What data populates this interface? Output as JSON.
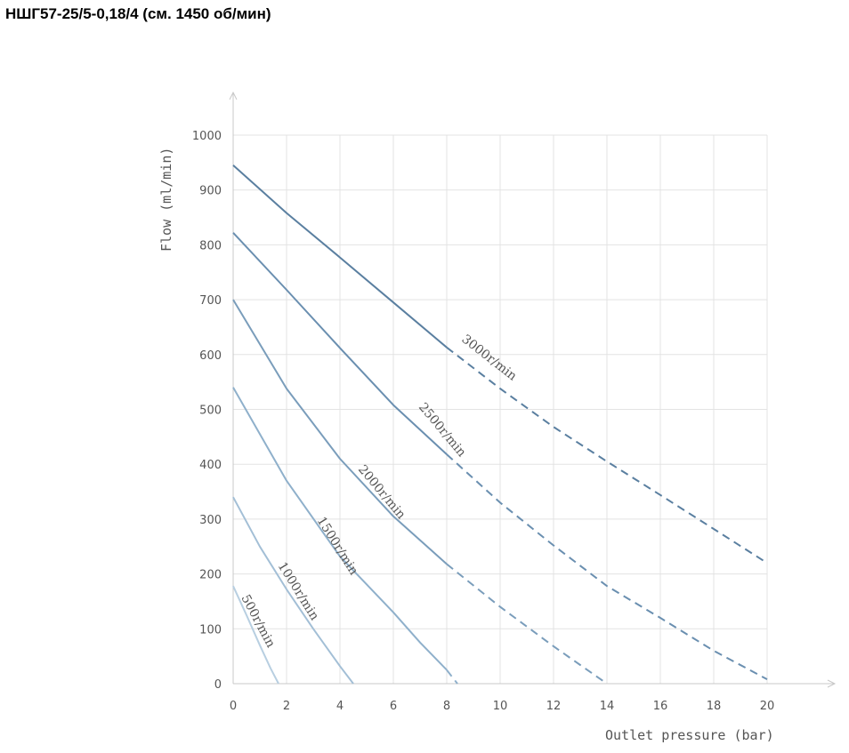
{
  "page": {
    "title": "НШГ57-25/5-0,18/4 (см. 1450 об/мин)"
  },
  "chart_data": {
    "type": "line",
    "xlabel": "Outlet pressure (bar)",
    "ylabel": "Flow (ml/min)",
    "xlim": [
      0,
      20
    ],
    "ylim": [
      0,
      1000
    ],
    "xticks": [
      0,
      2,
      4,
      6,
      8,
      10,
      12,
      14,
      16,
      18,
      20
    ],
    "yticks": [
      0,
      100,
      200,
      300,
      400,
      500,
      600,
      700,
      800,
      900,
      1000
    ],
    "grid": true,
    "legend": "none",
    "series": [
      {
        "name": "3000r/min",
        "color": "#5a7fa0",
        "solid": [
          [
            0,
            945
          ],
          [
            2,
            858
          ],
          [
            4,
            777
          ],
          [
            6,
            695
          ],
          [
            8,
            613
          ]
        ],
        "dashed": [
          [
            8,
            613
          ],
          [
            10,
            538
          ],
          [
            12,
            468
          ],
          [
            14,
            405
          ],
          [
            16,
            344
          ],
          [
            18,
            282
          ],
          [
            20,
            220
          ]
        ]
      },
      {
        "name": "2500r/min",
        "color": "#6a8fb0",
        "solid": [
          [
            0,
            822
          ],
          [
            2,
            718
          ],
          [
            4,
            612
          ],
          [
            6,
            508
          ],
          [
            8,
            418
          ]
        ],
        "dashed": [
          [
            8,
            418
          ],
          [
            10,
            330
          ],
          [
            12,
            252
          ],
          [
            14,
            178
          ],
          [
            16,
            120
          ],
          [
            18,
            60
          ],
          [
            20,
            8
          ]
        ]
      },
      {
        "name": "2000r/min",
        "color": "#7a9dbb",
        "solid": [
          [
            0,
            700
          ],
          [
            2,
            538
          ],
          [
            4,
            410
          ],
          [
            6,
            305
          ],
          [
            8,
            218
          ]
        ],
        "dashed": [
          [
            8,
            218
          ],
          [
            10,
            140
          ],
          [
            12,
            68
          ],
          [
            13,
            34
          ],
          [
            14,
            0
          ]
        ]
      },
      {
        "name": "1500r/min",
        "color": "#8fb0cb",
        "solid": [
          [
            0,
            540
          ],
          [
            2,
            370
          ],
          [
            4,
            232
          ],
          [
            6,
            130
          ],
          [
            7,
            75
          ],
          [
            8,
            25
          ]
        ],
        "dashed": [
          [
            8,
            25
          ],
          [
            8.4,
            0
          ]
        ]
      },
      {
        "name": "1000r/min",
        "color": "#a3bfd6",
        "solid": [
          [
            0,
            340
          ],
          [
            1,
            250
          ],
          [
            2,
            172
          ],
          [
            3,
            100
          ],
          [
            4,
            32
          ],
          [
            4.5,
            0
          ]
        ],
        "dashed": []
      },
      {
        "name": "500r/min",
        "color": "#b8cfe1",
        "solid": [
          [
            0,
            178
          ],
          [
            0.5,
            125
          ],
          [
            1,
            70
          ],
          [
            1.4,
            28
          ],
          [
            1.7,
            0
          ]
        ],
        "dashed": []
      }
    ]
  }
}
